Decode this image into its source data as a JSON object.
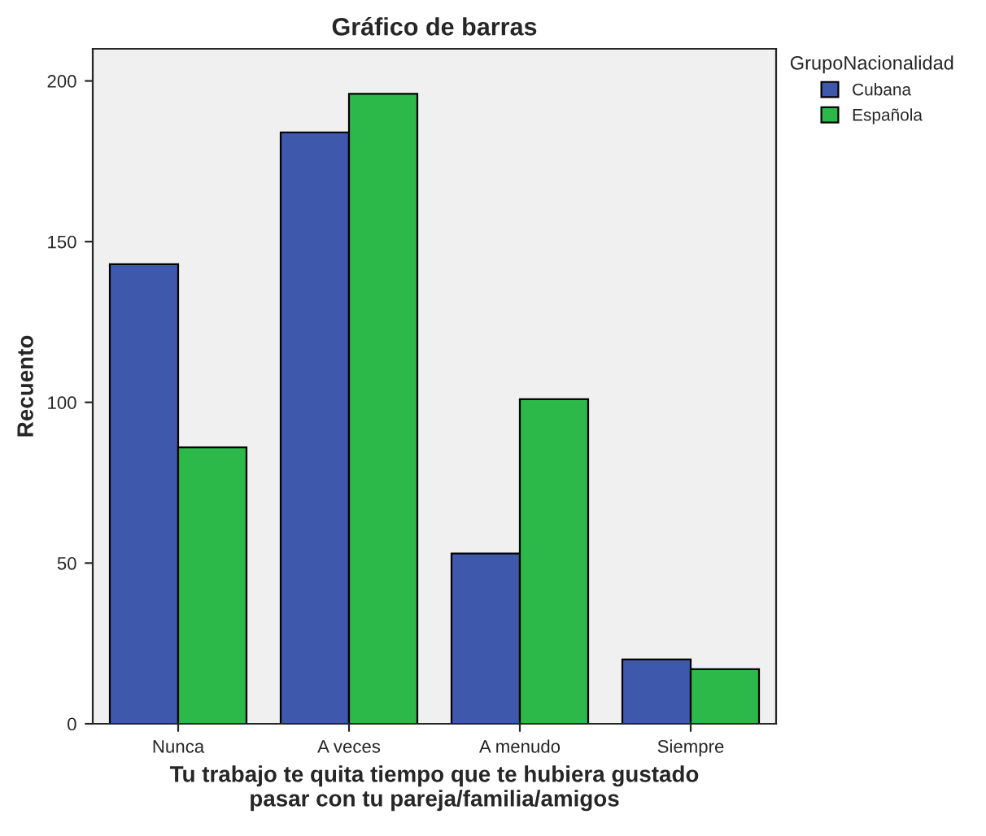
{
  "chart_data": {
    "type": "bar",
    "title": "Gráfico de barras",
    "xlabel": "Tu trabajo te quita tiempo que te hubiera gustado\npasar con tu pareja/familia/amigos",
    "ylabel": "Recuento",
    "legend_title": "GrupoNacionalidad",
    "legend": "top right",
    "categories": [
      "Nunca",
      "A veces",
      "A menudo",
      "Siempre"
    ],
    "series": [
      {
        "name": "Cubana",
        "color": "#3e58ac",
        "values": [
          143,
          184,
          53,
          20
        ]
      },
      {
        "name": "Española",
        "color": "#2db84a",
        "values": [
          86,
          196,
          101,
          17
        ]
      }
    ],
    "ylim": [
      0,
      210
    ],
    "yticks": [
      0,
      50,
      100,
      150,
      200
    ],
    "grid": false
  }
}
